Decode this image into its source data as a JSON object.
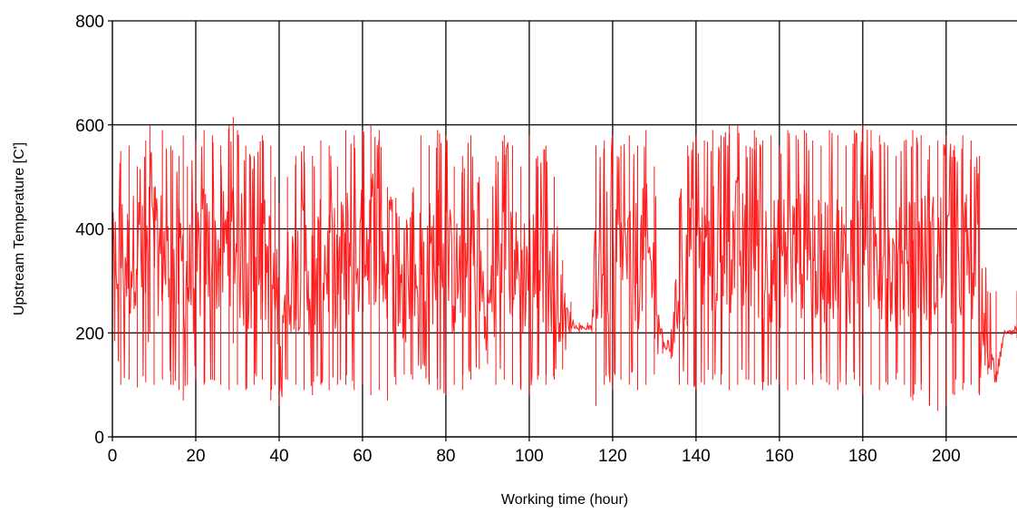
{
  "chart_data": {
    "type": "line",
    "xlabel": "Working time (hour)",
    "ylabel": "Upstream Temperature [C']",
    "xlim": [
      0,
      217
    ],
    "ylim": [
      0,
      800
    ],
    "x_ticks": [
      0,
      20,
      40,
      60,
      80,
      100,
      120,
      140,
      160,
      180,
      200
    ],
    "y_ticks": [
      0,
      200,
      400,
      600,
      800
    ],
    "grid": true,
    "legend": "none",
    "series": [
      {
        "color": "#ff0000",
        "x": [
          0,
          2,
          4,
          6,
          8,
          9,
          10,
          12,
          14,
          16,
          17,
          18,
          20,
          22,
          24,
          26,
          28,
          29,
          30,
          32,
          34,
          36,
          38,
          39,
          40,
          42,
          44,
          46,
          48,
          50,
          52,
          54,
          56,
          58,
          60,
          62,
          64,
          66,
          68,
          70,
          72,
          74,
          76,
          78,
          80,
          82,
          84,
          86,
          88,
          90,
          92,
          94,
          96,
          98,
          100,
          102,
          104,
          106,
          108,
          110,
          112,
          114,
          115,
          116,
          118,
          120,
          122,
          124,
          126,
          128,
          130,
          132,
          134,
          136,
          138,
          140,
          142,
          144,
          146,
          148,
          150,
          152,
          154,
          156,
          158,
          160,
          162,
          164,
          166,
          168,
          170,
          172,
          174,
          176,
          178,
          180,
          182,
          184,
          186,
          188,
          190,
          192,
          194,
          196,
          198,
          200,
          202,
          204,
          206,
          208,
          210,
          212,
          214,
          216,
          217
        ],
        "y_high": [
          500,
          550,
          560,
          520,
          570,
          600,
          480,
          590,
          560,
          540,
          580,
          520,
          570,
          590,
          580,
          560,
          600,
          615,
          590,
          560,
          540,
          580,
          560,
          500,
          450,
          500,
          540,
          560,
          540,
          570,
          560,
          520,
          590,
          580,
          590,
          600,
          590,
          480,
          460,
          400,
          470,
          580,
          560,
          590,
          580,
          520,
          540,
          580,
          500,
          420,
          540,
          580,
          560,
          520,
          580,
          540,
          560,
          500,
          340,
          260,
          220,
          220,
          215,
          560,
          570,
          580,
          560,
          580,
          560,
          590,
          520,
          200,
          200,
          460,
          560,
          580,
          570,
          590,
          580,
          600,
          600,
          560,
          590,
          570,
          580,
          560,
          590,
          580,
          590,
          570,
          560,
          590,
          580,
          560,
          590,
          600,
          590,
          580,
          560,
          540,
          570,
          590,
          580,
          560,
          570,
          580,
          560,
          580,
          570,
          540,
          280,
          280,
          200,
          200,
          280
        ],
        "y_mid": [
          340,
          360,
          330,
          380,
          300,
          420,
          340,
          360,
          300,
          320,
          340,
          300,
          320,
          360,
          340,
          350,
          380,
          400,
          360,
          320,
          300,
          340,
          320,
          260,
          260,
          300,
          320,
          340,
          300,
          330,
          340,
          320,
          360,
          340,
          350,
          400,
          380,
          300,
          290,
          260,
          280,
          340,
          330,
          360,
          340,
          300,
          320,
          360,
          300,
          240,
          320,
          350,
          340,
          300,
          340,
          310,
          330,
          290,
          240,
          220,
          210,
          210,
          210,
          330,
          340,
          350,
          330,
          350,
          330,
          360,
          300,
          180,
          170,
          290,
          330,
          350,
          340,
          360,
          350,
          370,
          370,
          330,
          360,
          340,
          350,
          330,
          360,
          350,
          360,
          340,
          330,
          360,
          350,
          330,
          360,
          370,
          360,
          350,
          330,
          310,
          340,
          360,
          350,
          330,
          340,
          350,
          330,
          350,
          340,
          310,
          130,
          130,
          200,
          200,
          200
        ],
        "y_low": [
          180,
          100,
          110,
          95,
          105,
          200,
          100,
          110,
          100,
          90,
          70,
          100,
          110,
          100,
          110,
          100,
          90,
          180,
          100,
          90,
          100,
          110,
          70,
          100,
          60,
          110,
          100,
          90,
          80,
          100,
          90,
          100,
          100,
          90,
          100,
          80,
          90,
          70,
          100,
          120,
          110,
          130,
          100,
          90,
          80,
          100,
          90,
          110,
          130,
          140,
          100,
          110,
          100,
          90,
          80,
          110,
          100,
          110,
          130,
          200,
          200,
          210,
          200,
          60,
          100,
          90,
          110,
          100,
          90,
          100,
          120,
          160,
          150,
          100,
          100,
          90,
          100,
          110,
          100,
          90,
          100,
          110,
          100,
          90,
          100,
          100,
          90,
          100,
          110,
          100,
          110,
          100,
          90,
          100,
          110,
          80,
          100,
          90,
          100,
          110,
          100,
          70,
          90,
          60,
          50,
          60,
          80,
          90,
          100,
          80,
          120,
          120,
          200,
          200,
          190
        ]
      }
    ]
  }
}
